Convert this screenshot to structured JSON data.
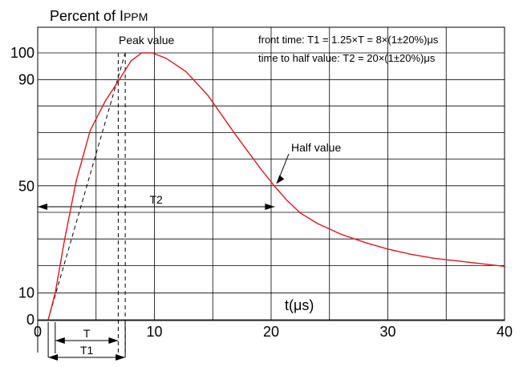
{
  "chart_data": {
    "type": "line",
    "title": "",
    "ylabel_main": "Percent of I",
    "ylabel_sub": "PPM",
    "xlabel": "t(μs)",
    "xlim": [
      0,
      40
    ],
    "ylim": [
      0,
      100
    ],
    "grid": true,
    "x_ticks": [
      "0",
      "10",
      "20",
      "30",
      "40"
    ],
    "y_ticks": [
      {
        "value": 0,
        "label": "0"
      },
      {
        "value": 10,
        "label": "10"
      },
      {
        "value": 50,
        "label": "50"
      },
      {
        "value": 90,
        "label": "90"
      },
      {
        "value": 100,
        "label": "100"
      }
    ],
    "series": [
      {
        "color": "#e8141a",
        "points": [
          [
            0.9,
            0
          ],
          [
            1.5,
            10
          ],
          [
            2.3,
            30
          ],
          [
            3.3,
            52
          ],
          [
            4.5,
            71
          ],
          [
            5.8,
            82
          ],
          [
            7.0,
            90
          ],
          [
            8.0,
            97
          ],
          [
            8.9,
            100
          ],
          [
            9.8,
            100
          ],
          [
            11.0,
            98
          ],
          [
            12.7,
            93
          ],
          [
            14.6,
            84
          ],
          [
            17.0,
            69
          ],
          [
            19.2,
            56
          ],
          [
            20.3,
            50
          ],
          [
            21.3,
            45
          ],
          [
            22.5,
            40
          ],
          [
            24.0,
            36
          ],
          [
            26.0,
            32
          ],
          [
            28.0,
            29
          ],
          [
            30.0,
            26.5
          ],
          [
            32.0,
            24.5
          ],
          [
            34.0,
            23
          ],
          [
            36.0,
            22
          ],
          [
            38.0,
            21
          ],
          [
            40.0,
            20
          ]
        ]
      }
    ],
    "front_line": {
      "x0": 0.9,
      "y0": 0,
      "x1": 7.5,
      "y1": 100
    },
    "peak_label": "Peak value",
    "half_label": "Half value",
    "t2_label": "T2",
    "t_label": "T",
    "t1_label": "T1",
    "t2_range": [
      0,
      20.3
    ],
    "t_range": [
      1.5,
      6.9
    ],
    "t1_range": [
      0.9,
      7.5
    ],
    "annotation_line1": "front time: T1 = 1.25×T = 8×(1±20%)μs",
    "annotation_line2": "time to half value: T2 = 20×(1±20%)μs"
  }
}
